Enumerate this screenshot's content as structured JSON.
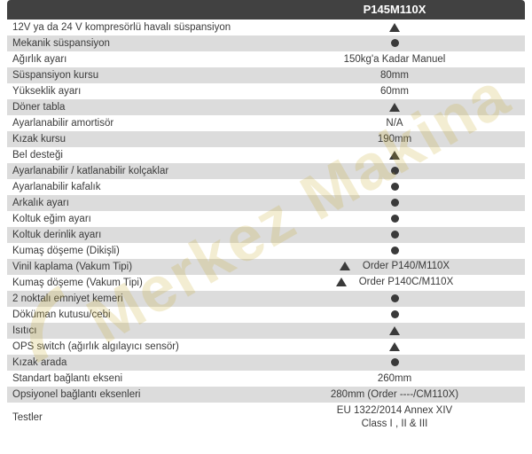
{
  "header": {
    "model": "P145M110X"
  },
  "colors": {
    "header_bg": "#414141",
    "header_text": "#ffffff",
    "row_even_bg": "#ffffff",
    "row_odd_bg": "#dcdcdc",
    "text": "#3a3a3a",
    "symbol": "#3a3a3a",
    "watermark": "rgba(200,175,50,0.22)"
  },
  "watermark_text": "Merkez Makina",
  "rows": [
    {
      "label": "12V ya da 24 V kompresörlü havalı süspansiyon",
      "value_type": "triangle",
      "value_text": ""
    },
    {
      "label": "Mekanik süspansiyon",
      "value_type": "dot",
      "value_text": ""
    },
    {
      "label": "Ağırlık ayarı",
      "value_type": "text",
      "value_text": "150kg'a Kadar Manuel"
    },
    {
      "label": "Süspansiyon kursu",
      "value_type": "text",
      "value_text": "80mm"
    },
    {
      "label": "Yükseklik ayarı",
      "value_type": "text",
      "value_text": "60mm"
    },
    {
      "label": "Döner tabla",
      "value_type": "triangle",
      "value_text": ""
    },
    {
      "label": "Ayarlanabilir amortisör",
      "value_type": "text",
      "value_text": "N/A"
    },
    {
      "label": "Kızak kursu",
      "value_type": "text",
      "value_text": "190mm"
    },
    {
      "label": "Bel desteği",
      "value_type": "triangle",
      "value_text": ""
    },
    {
      "label": "Ayarlanabilir / katlanabilir kolçaklar",
      "value_type": "dot",
      "value_text": ""
    },
    {
      "label": "Ayarlanabilir kafalık",
      "value_type": "dot",
      "value_text": ""
    },
    {
      "label": "Arkalık ayarı",
      "value_type": "dot",
      "value_text": ""
    },
    {
      "label": "Koltuk eğim ayarı",
      "value_type": "dot",
      "value_text": ""
    },
    {
      "label": "Koltuk derinlik ayarı",
      "value_type": "dot",
      "value_text": ""
    },
    {
      "label": "Kumaş döşeme (Dikişli)",
      "value_type": "dot",
      "value_text": ""
    },
    {
      "label": "Vinil kaplama (Vakum Tipi)",
      "value_type": "tri-text",
      "value_text": "Order P140/M110X"
    },
    {
      "label": "Kumaş döşeme (Vakum Tipi)",
      "value_type": "tri-text",
      "value_text": "Order P140C/M110X"
    },
    {
      "label": "2 noktalı emniyet kemeri",
      "value_type": "dot",
      "value_text": ""
    },
    {
      "label": "Döküman kutusu/cebi",
      "value_type": "dot",
      "value_text": ""
    },
    {
      "label": "Isıtıcı",
      "value_type": "triangle",
      "value_text": ""
    },
    {
      "label": "OPS switch (ağırlık algılayıcı sensör)",
      "value_type": "triangle",
      "value_text": ""
    },
    {
      "label": "Kızak arada",
      "value_type": "dot",
      "value_text": ""
    },
    {
      "label": "Standart bağlantı ekseni",
      "value_type": "text",
      "value_text": "260mm"
    },
    {
      "label": "Opsiyonel bağlantı eksenleri",
      "value_type": "text",
      "value_text": "280mm (Order ----/CM110X)"
    },
    {
      "label": "Testler",
      "value_type": "multiline",
      "value_text": "EU 1322/2014 Annex XIV",
      "value_text2": "Class I , II & III"
    }
  ]
}
